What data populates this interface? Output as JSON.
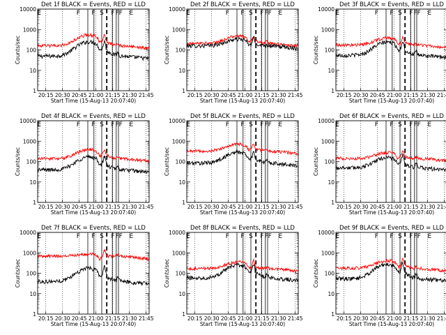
{
  "chart_data": {
    "type": "line",
    "layout": {
      "rows": 3,
      "cols": 3
    },
    "ylabel": "Counts/sec",
    "xlabel": "Start Time (15-Aug-13 20:07:40)",
    "yscale": "log",
    "ylim": [
      1,
      10000
    ],
    "ytick_labels": [
      "1",
      "10",
      "100",
      "1000",
      "10000"
    ],
    "xlim_minutes": [
      0,
      100
    ],
    "xtick_labels": [
      "20:15",
      "20:30",
      "20:45",
      "21:00",
      "21:15",
      "21:30",
      "21:45"
    ],
    "series_legend": {
      "black": "Events",
      "red": "LLD"
    },
    "colors": {
      "events": "#000000",
      "lld": "#ff0000",
      "axes": "#000000"
    },
    "marker_labels": [
      "E",
      "F",
      "F",
      "S",
      "F",
      "F",
      "F",
      "E"
    ],
    "markers_minutes": [
      {
        "t": 45,
        "style": "solid",
        "label": "F"
      },
      {
        "t": 50.5,
        "style": "solid",
        "label": "F"
      },
      {
        "t": 57.5,
        "style": "solid",
        "label": "S"
      },
      {
        "t": 62,
        "style": "dashed",
        "label": ""
      },
      {
        "t": 67,
        "style": "solid",
        "label": "F"
      },
      {
        "t": 70.5,
        "style": "solid",
        "label": "F"
      },
      {
        "t": 72.5,
        "style": "solid",
        "label": "F"
      },
      {
        "t": 83,
        "style": "none",
        "label": "E"
      }
    ],
    "panels": [
      {
        "title": "Det 1f BLACK = Events, RED = LLD",
        "black_base": 50,
        "red_base": 160,
        "black_peak": 5,
        "red_peak": 3.4,
        "spike": 2.4
      },
      {
        "title": "Det 2f BLACK = Events, RED = LLD",
        "black_base": 160,
        "red_base": 210,
        "black_peak": 2.1,
        "red_peak": 2.3,
        "spike": 1.8
      },
      {
        "title": "Det 3f BLACK = Events, RED = LLD",
        "black_base": 55,
        "red_base": 175,
        "black_peak": 4.4,
        "red_peak": 2.2,
        "spike": 2.4
      },
      {
        "title": "Det 4f BLACK = Events, RED = LLD",
        "black_base": 40,
        "red_base": 140,
        "black_peak": 4.2,
        "red_peak": 2.8,
        "spike": 2.2
      },
      {
        "title": "Det 5f BLACK = Events, RED = LLD",
        "black_base": 85,
        "red_base": 330,
        "black_peak": 3.4,
        "red_peak": 2.2,
        "spike": 2.2
      },
      {
        "title": "Det 6f BLACK = Events, RED = LLD",
        "black_base": 50,
        "red_base": 145,
        "black_peak": 3.2,
        "red_peak": 1.9,
        "spike": 2.6
      },
      {
        "title": "Det 7f BLACK = Events, RED = LLD",
        "black_base": 40,
        "red_base": 680,
        "black_peak": 4.4,
        "red_peak": 1.25,
        "spike": 2.6
      },
      {
        "title": "Det 8f BLACK = Events, RED = LLD",
        "black_base": 60,
        "red_base": 170,
        "black_peak": 4.2,
        "red_peak": 2.1,
        "spike": 2.4
      },
      {
        "title": "Det 9f BLACK = Events, RED = LLD",
        "black_base": 55,
        "red_base": 175,
        "black_peak": 5,
        "red_peak": 2.4,
        "spike": 2.6
      }
    ]
  }
}
